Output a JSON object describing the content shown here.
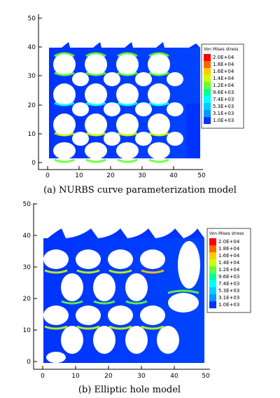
{
  "panels": [
    {
      "caption": "(a)  NURBS curve parameterization model",
      "legend_title": "Von Mises stress",
      "legend_levels": [
        "2.0E+04",
        "1.8E+04",
        "1.6E+04",
        "1.4E+04",
        "1.2E+04",
        "9.6E+03",
        "7.4E+03",
        "5.3E+03",
        "3.1E+03",
        "1.0E+03"
      ],
      "x_ticks": [
        "0",
        "10",
        "20",
        "30",
        "40",
        "50"
      ],
      "y_ticks": [
        "0",
        "10",
        "20",
        "30",
        "40",
        "50"
      ]
    },
    {
      "caption": "(b)  Elliptic hole model",
      "legend_title": "Von Mises stress",
      "legend_levels": [
        "2.0E+04",
        "1.8E+04",
        "1.6E+04",
        "1.4E+04",
        "1.2E+04",
        "9.6E+03",
        "7.4E+03",
        "5.3E+03",
        "3.1E+03",
        "1.0E+03"
      ],
      "x_ticks": [
        "0",
        "10",
        "20",
        "30",
        "40",
        "50"
      ],
      "y_ticks": [
        "0",
        "10",
        "20",
        "30",
        "40",
        "50"
      ]
    }
  ],
  "colors": {
    "scale": [
      "#ff0000",
      "#ff6600",
      "#ffcc00",
      "#ccff00",
      "#66ff33",
      "#00ff99",
      "#00ffff",
      "#00ccff",
      "#0099ff",
      "#0033ff"
    ],
    "base_stress": "#0033ff",
    "hole": "#ffffff"
  }
}
